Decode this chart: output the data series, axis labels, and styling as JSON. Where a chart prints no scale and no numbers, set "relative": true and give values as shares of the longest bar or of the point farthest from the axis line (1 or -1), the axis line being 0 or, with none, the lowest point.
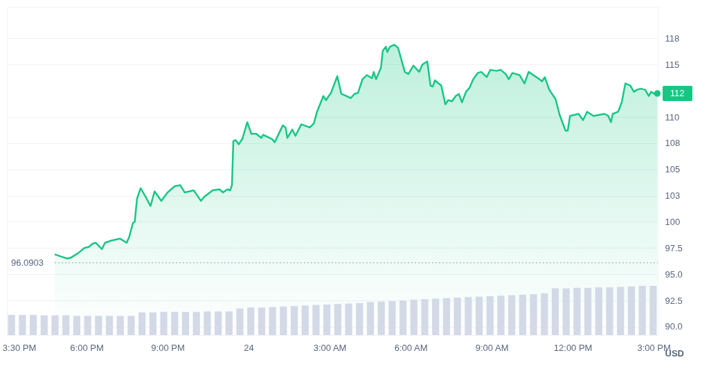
{
  "chart_data": [
    {
      "type": "area",
      "ylabel": "USD",
      "xlim": [
        "--05-23T15:03",
        "--05-24T15:09"
      ],
      "ylim": [
        89.2,
        120.5
      ],
      "xticks": [
        {
          "value": "--05-23T15:30",
          "label": "3:30 PM"
        },
        {
          "value": "--05-23T18:00",
          "label": "6:00 PM"
        },
        {
          "value": "--05-23T21:00",
          "label": "9:00 PM"
        },
        {
          "value": "--05-24T00:00",
          "label": "24"
        },
        {
          "value": "--05-24T03:00",
          "label": "3:00 AM"
        },
        {
          "value": "--05-24T06:00",
          "label": "6:00 AM"
        },
        {
          "value": "--05-24T09:00",
          "label": "9:00 AM"
        },
        {
          "value": "--05-24T12:00",
          "label": "12:00 PM"
        },
        {
          "value": "--05-24T15:00",
          "label": "3:00 PM"
        }
      ],
      "yticks": [
        {
          "value": 90,
          "label": "90.0"
        },
        92.5,
        {
          "value": 95,
          "label": "95.0"
        },
        97.5,
        100,
        {
          "value": 102.5,
          "label": "103"
        },
        105,
        {
          "value": 107.5,
          "label": "108"
        },
        110,
        115,
        {
          "value": 117.5,
          "label": "118"
        }
      ],
      "grid": "y",
      "ref_lines": [
        {
          "axis": "y",
          "value": 96.0903,
          "label": "96.0903",
          "line_style": "dotted",
          "color": "#a6b0c3"
        }
      ],
      "annotations": [
        {
          "text": "112",
          "x": "--05-24T15:08",
          "y": 112.24
        }
      ],
      "x": [
        "--05-23T16:49",
        "--05-23T17:02",
        "--05-23T17:17",
        "--05-23T17:26",
        "--05-23T17:41",
        "--05-23T17:55",
        "--05-23T18:05",
        "--05-23T18:13",
        "--05-23T18:20",
        "--05-23T18:34",
        "--05-23T18:41",
        "--05-23T18:54",
        "--05-23T19:14",
        "--05-23T19:29",
        "--05-23T19:35",
        "--05-23T19:43",
        "--05-23T19:47",
        "--05-23T19:52",
        "--05-23T20:00",
        "--05-23T20:11",
        "--05-23T20:22",
        "--05-23T20:31",
        "--05-23T20:46",
        "--05-23T21:00",
        "--05-23T21:16",
        "--05-23T21:28",
        "--05-23T21:38",
        "--05-23T21:58",
        "--05-23T22:14",
        "--05-23T22:22",
        "--05-23T22:40",
        "--05-23T22:55",
        "--05-23T23:03",
        "--05-23T23:13",
        "--05-23T23:19",
        "--05-23T23:23",
        "--05-23T23:26",
        "--05-23T23:31",
        "--05-23T23:38",
        "--05-23T23:46",
        "--05-23T23:57",
        "--05-24T00:06",
        "--05-24T00:17",
        "--05-24T00:28",
        "--05-24T00:32",
        "--05-24T00:52",
        "--05-24T00:58",
        "--05-24T01:16",
        "--05-24T01:22",
        "--05-24T01:26",
        "--05-24T01:37",
        "--05-24T01:44",
        "--05-24T01:57",
        "--05-24T02:16",
        "--05-24T02:25",
        "--05-24T02:32",
        "--05-24T02:46",
        "--05-24T02:52",
        "--05-24T02:58",
        "--05-24T03:03",
        "--05-24T03:17",
        "--05-24T03:26",
        "--05-24T03:37",
        "--05-24T03:47",
        "--05-24T03:55",
        "--05-24T04:03",
        "--05-24T04:13",
        "--05-24T04:23",
        "--05-24T04:34",
        "--05-24T04:38",
        "--05-24T04:43",
        "--05-24T04:54",
        "--05-24T04:58",
        "--05-24T05:05",
        "--05-24T05:08",
        "--05-24T05:14",
        "--05-24T05:23",
        "--05-24T05:32",
        "--05-24T05:47",
        "--05-24T05:55",
        "--05-24T06:06",
        "--05-24T06:19",
        "--05-24T06:26",
        "--05-24T06:37",
        "--05-24T06:44",
        "--05-24T06:49",
        "--05-24T06:54",
        "--05-24T07:02",
        "--05-24T07:08",
        "--05-24T07:17",
        "--05-24T07:23",
        "--05-24T07:32",
        "--05-24T07:40",
        "--05-24T07:47",
        "--05-24T07:54",
        "--05-24T08:03",
        "--05-24T08:11",
        "--05-24T08:19",
        "--05-24T08:29",
        "--05-24T08:37",
        "--05-24T08:49",
        "--05-24T08:57",
        "--05-24T09:11",
        "--05-24T09:20",
        "--05-24T09:31",
        "--05-24T09:38",
        "--05-24T09:46",
        "--05-24T10:02",
        "--05-24T10:13",
        "--05-24T10:22",
        "--05-24T10:43",
        "--05-24T10:52",
        "--05-24T10:58",
        "--05-24T11:08",
        "--05-24T11:22",
        "--05-24T11:31",
        "--05-24T11:44",
        "--05-24T11:49",
        "--05-24T11:54",
        "--05-24T12:13",
        "--05-24T12:23",
        "--05-24T12:32",
        "--05-24T12:46",
        "--05-24T13:11",
        "--05-24T13:19",
        "--05-24T13:25",
        "--05-24T13:29",
        "--05-24T13:41",
        "--05-24T13:49",
        "--05-24T13:57",
        "--05-24T14:08",
        "--05-24T14:16",
        "--05-24T14:23",
        "--05-24T14:31",
        "--05-24T14:41",
        "--05-24T14:49",
        "--05-24T14:54",
        "--05-24T15:02",
        "--05-24T15:08"
      ],
      "series": [
        {
          "color": "#16c784",
          "values": [
            96.9,
            96.7,
            96.5,
            96.6,
            97.0,
            97.5,
            97.6,
            97.9,
            98.0,
            97.4,
            98.0,
            98.2,
            98.4,
            98.0,
            98.6,
            99.9,
            100.0,
            102.2,
            103.2,
            102.4,
            101.5,
            102.9,
            102.0,
            102.8,
            103.4,
            103.5,
            102.8,
            103.0,
            102.0,
            102.4,
            103.0,
            103.1,
            102.8,
            103.1,
            103.0,
            103.5,
            107.7,
            107.8,
            107.4,
            107.9,
            109.5,
            108.4,
            108.4,
            108.0,
            108.3,
            107.9,
            107.6,
            109.2,
            109.0,
            108.0,
            108.8,
            108.2,
            109.3,
            109.0,
            109.4,
            110.5,
            112.0,
            111.6,
            112.0,
            112.3,
            113.9,
            112.2,
            112.0,
            111.8,
            112.2,
            112.3,
            113.6,
            114.0,
            113.7,
            114.3,
            113.6,
            114.7,
            116.3,
            116.7,
            116.2,
            116.7,
            116.9,
            116.6,
            114.3,
            114.1,
            114.9,
            114.3,
            115.0,
            115.3,
            113.0,
            112.9,
            113.5,
            113.2,
            113.0,
            111.2,
            111.6,
            111.5,
            112.0,
            112.2,
            111.4,
            112.4,
            112.8,
            113.6,
            114.2,
            114.3,
            113.8,
            114.5,
            114.4,
            114.5,
            114.1,
            113.6,
            114.2,
            114.0,
            113.2,
            114.3,
            113.7,
            113.4,
            113.8,
            112.6,
            111.7,
            110.2,
            108.7,
            108.7,
            110.1,
            110.3,
            109.7,
            110.5,
            110.1,
            110.3,
            110.1,
            109.5,
            110.3,
            110.5,
            111.4,
            113.2,
            113.0,
            112.4,
            112.6,
            112.7,
            112.6,
            112.0,
            112.4,
            112.2,
            112.2
          ]
        }
      ]
    },
    {
      "type": "bar",
      "relative": true,
      "categories": [
        null,
        null,
        null,
        null,
        null,
        null,
        null,
        null,
        null,
        null,
        null,
        null,
        null,
        null,
        null,
        null,
        null,
        null,
        null,
        null,
        null,
        null,
        null,
        null,
        null,
        null,
        null,
        null,
        null,
        null,
        null,
        null,
        null,
        null,
        null,
        null,
        null,
        null,
        null,
        null,
        null,
        null,
        null,
        null,
        null,
        null,
        null,
        null,
        null,
        null,
        null,
        null,
        null,
        null,
        null,
        null,
        null,
        null,
        null,
        null
      ],
      "series": [
        {
          "color": "#d3d9e6",
          "values": [
            0.41,
            0.41,
            0.41,
            0.4,
            0.4,
            0.4,
            0.39,
            0.39,
            0.39,
            0.39,
            0.39,
            0.39,
            0.46,
            0.46,
            0.47,
            0.47,
            0.47,
            0.47,
            0.48,
            0.48,
            0.48,
            0.54,
            0.56,
            0.56,
            0.57,
            0.58,
            0.59,
            0.6,
            0.61,
            0.62,
            0.63,
            0.64,
            0.65,
            0.67,
            0.68,
            0.69,
            0.7,
            0.72,
            0.73,
            0.74,
            0.75,
            0.76,
            0.77,
            0.78,
            0.79,
            0.8,
            0.81,
            0.82,
            0.83,
            0.85,
            0.95,
            0.95,
            0.96,
            0.96,
            0.97,
            0.97,
            0.98,
            0.99,
            1,
            1
          ]
        }
      ]
    }
  ]
}
